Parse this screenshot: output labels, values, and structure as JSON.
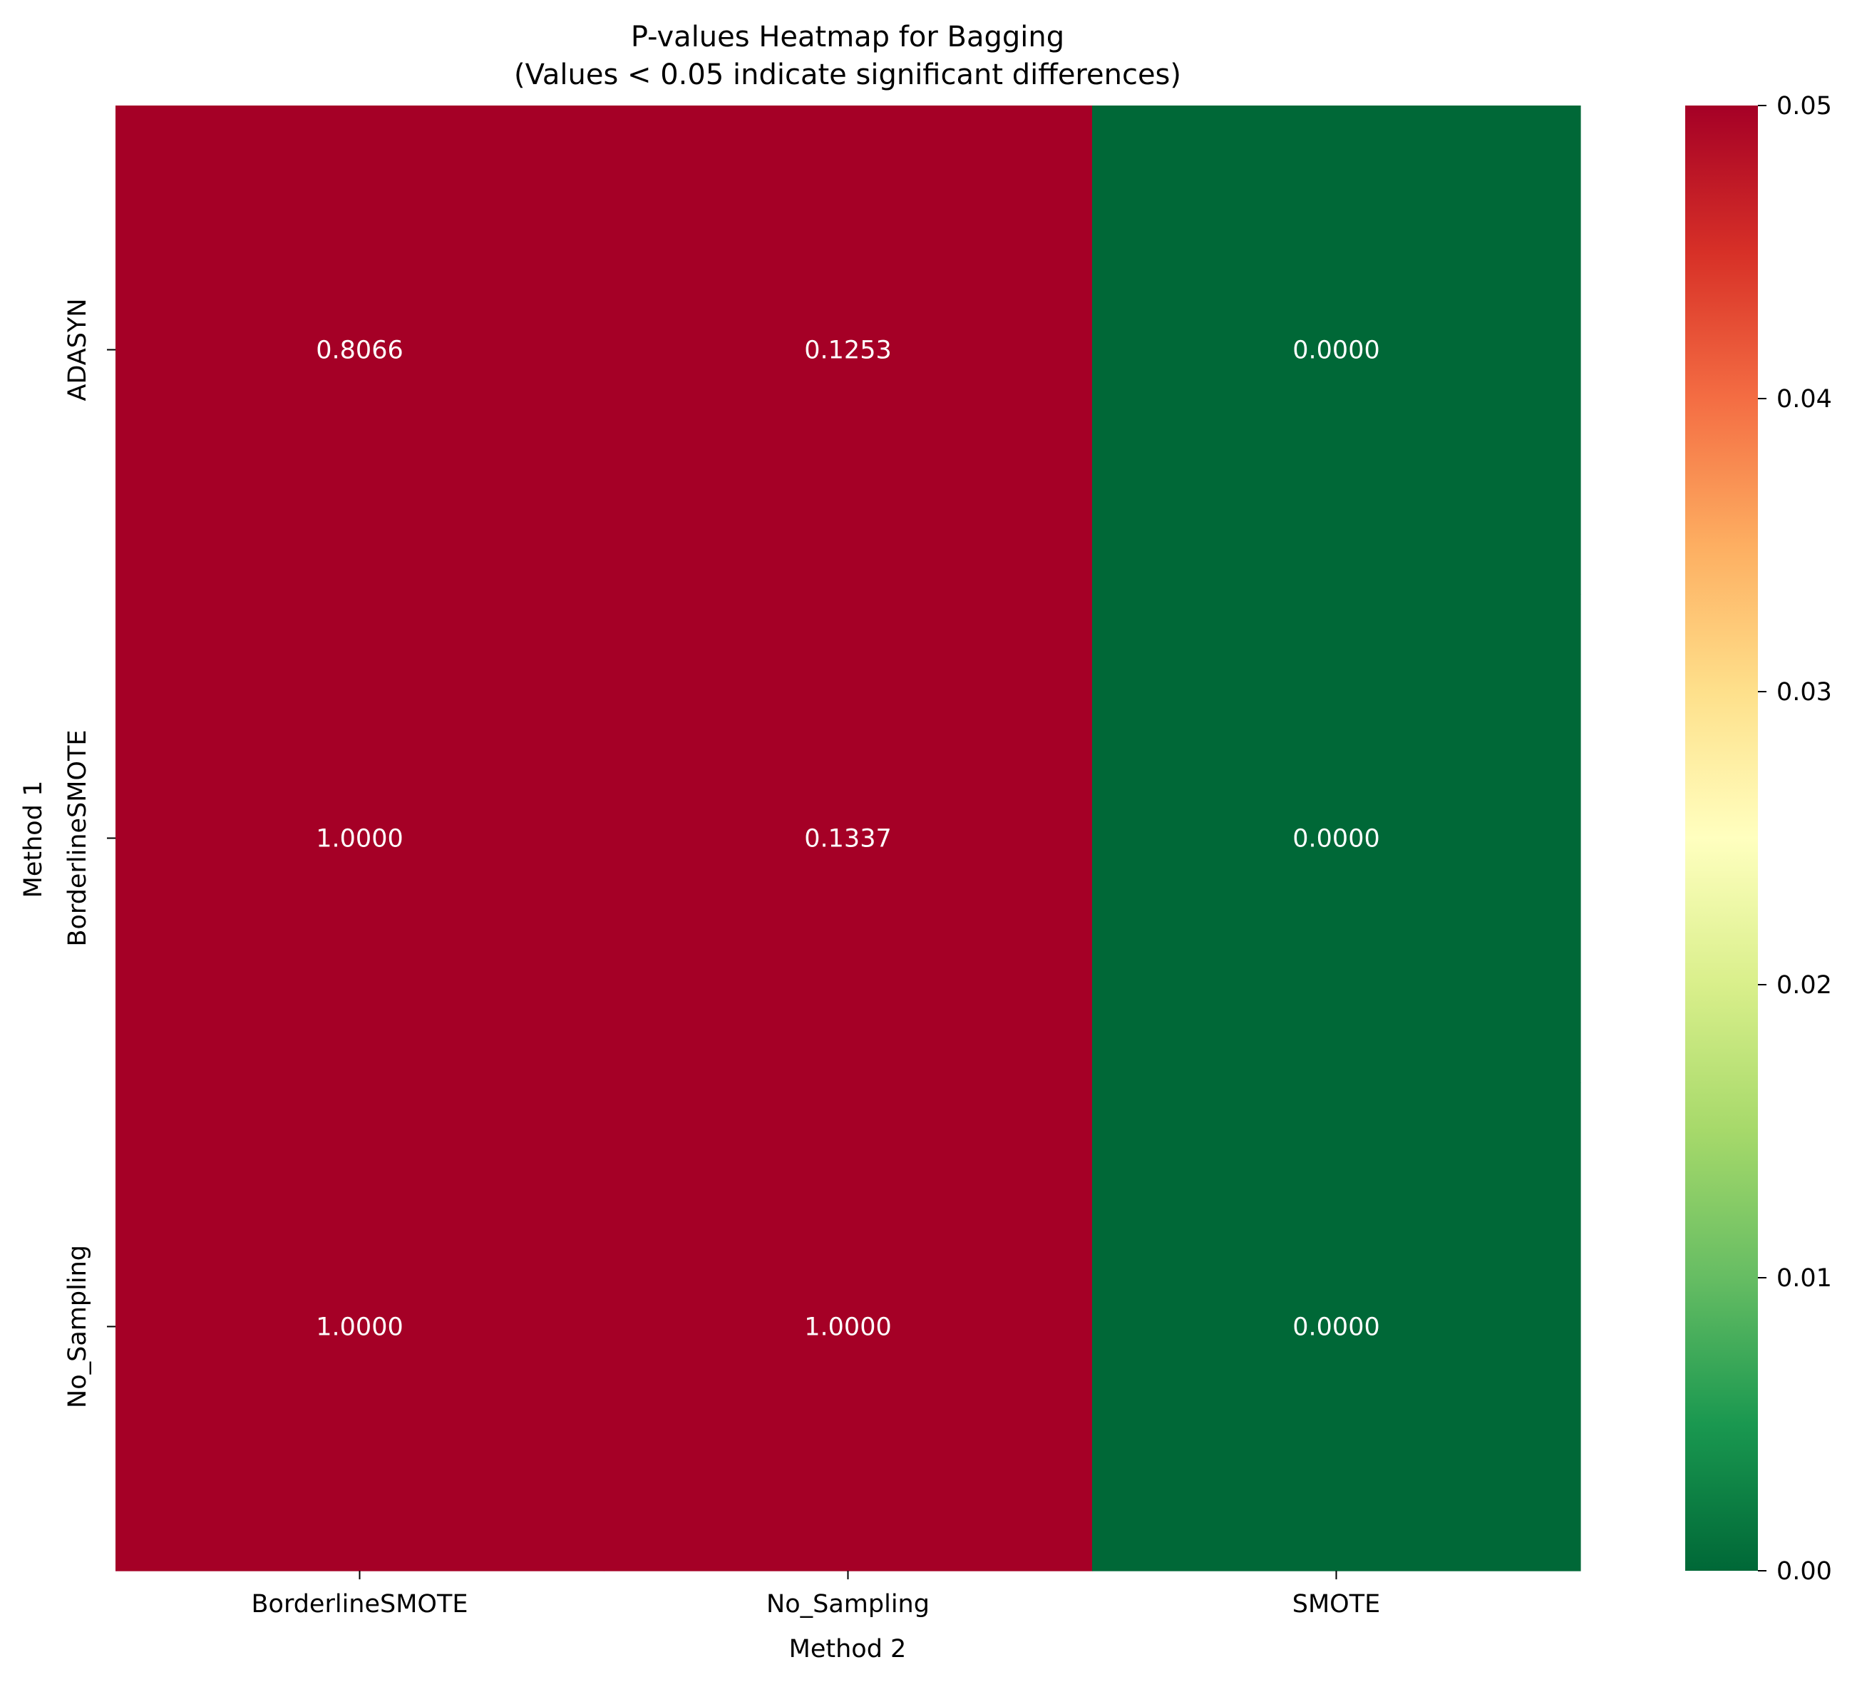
{
  "chart_data": {
    "type": "heatmap",
    "title": "P-values Heatmap for Bagging",
    "subtitle": "(Values < 0.05 indicate significant differences)",
    "xlabel": "Method 2",
    "ylabel": "Method 1",
    "x_categories": [
      "BorderlineSMOTE",
      "No_Sampling",
      "SMOTE"
    ],
    "y_categories": [
      "ADASYN",
      "BorderlineSMOTE",
      "No_Sampling"
    ],
    "values": [
      [
        0.8066,
        0.1253,
        0.0
      ],
      [
        1.0,
        0.1337,
        0.0
      ],
      [
        1.0,
        1.0,
        0.0
      ]
    ],
    "value_labels": [
      [
        "0.8066",
        "0.1253",
        "0.0000"
      ],
      [
        "1.0000",
        "0.1337",
        "0.0000"
      ],
      [
        "1.0000",
        "1.0000",
        "0.0000"
      ]
    ],
    "colorbar": {
      "vmin": 0.0,
      "vmax": 0.05,
      "ticks": [
        "0.00",
        "0.01",
        "0.02",
        "0.03",
        "0.04",
        "0.05"
      ],
      "tick_values": [
        0.0,
        0.01,
        0.02,
        0.03,
        0.04,
        0.05
      ],
      "colormap": "RdYlGn_r",
      "stops": [
        "#006837",
        "#1a9850",
        "#66bd63",
        "#a6d96a",
        "#d9ef8b",
        "#ffffbf",
        "#fee08b",
        "#fdae61",
        "#f46d43",
        "#d73027",
        "#a50026"
      ]
    },
    "grid": false
  }
}
